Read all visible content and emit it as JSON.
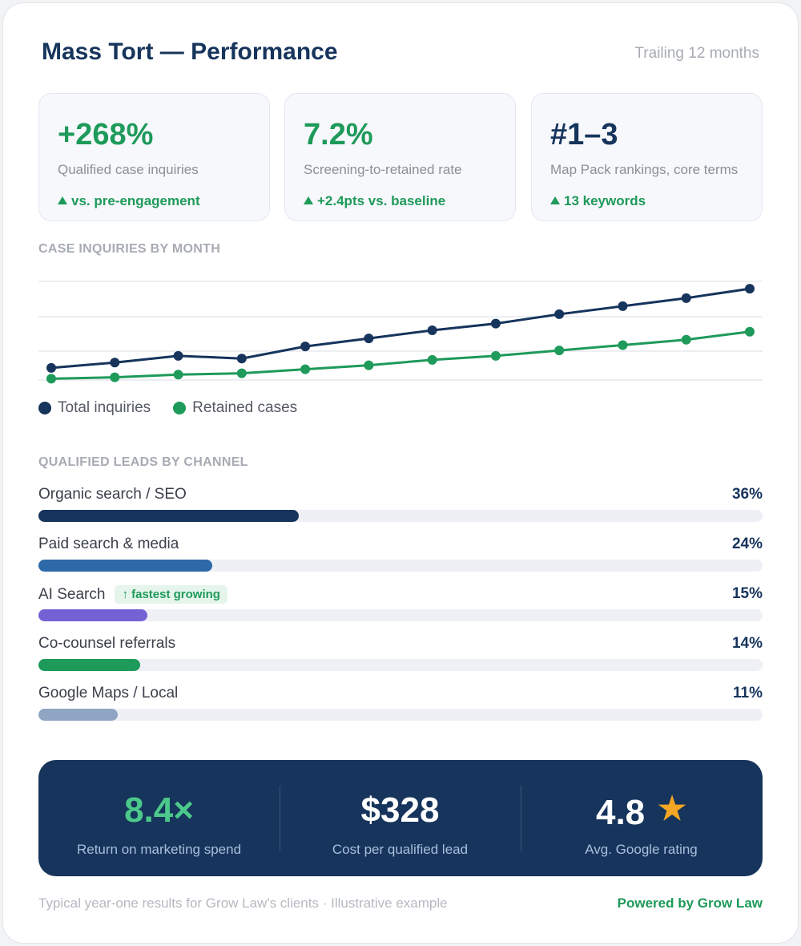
{
  "header": {
    "title": "Mass Tort — Performance",
    "subtitle": "Trailing 12 months"
  },
  "kpis": [
    {
      "value": "+268%",
      "label": "Qualified case inquiries",
      "delta": "vs. pre-engagement",
      "color": "#1e9a5a"
    },
    {
      "value": "7.2%",
      "label": "Screening-to-retained rate",
      "delta": "+2.4pts vs. baseline",
      "color": "#1e9a5a"
    },
    {
      "value": "#1–3",
      "label": "Map Pack rankings, core terms",
      "delta": "13 keywords",
      "color": "#16345c"
    }
  ],
  "sections": {
    "inquiries": "CASE INQUIRIES BY MONTH",
    "channels": "QUALIFIED LEADS BY CHANNEL"
  },
  "chart_data": {
    "type": "line",
    "title": "CASE INQUIRIES BY MONTH",
    "x": [
      1,
      2,
      3,
      4,
      5,
      6,
      7,
      8,
      9,
      10,
      11,
      12
    ],
    "series": [
      {
        "name": "Total inquiries",
        "color": "#16345c",
        "values": [
          18,
          26,
          36,
          32,
          50,
          62,
          74,
          84,
          98,
          110,
          122,
          136
        ]
      },
      {
        "name": "Retained cases",
        "color": "#1e9a5a",
        "values": [
          2,
          4,
          8,
          10,
          16,
          22,
          30,
          36,
          44,
          52,
          60,
          72
        ]
      }
    ],
    "ylim": [
      0,
      160
    ],
    "grid": true,
    "legend": "bottom-left"
  },
  "channels": [
    {
      "name": "Organic search / SEO",
      "pct_label": "36%",
      "value": 36,
      "color": "#16345c",
      "badge": ""
    },
    {
      "name": "Paid search & media",
      "pct_label": "24%",
      "value": 24,
      "color": "#2d69a8",
      "badge": ""
    },
    {
      "name": "AI Search",
      "pct_label": "15%",
      "value": 15,
      "color": "#7462d4",
      "badge": "↑ fastest growing"
    },
    {
      "name": "Co-counsel referrals",
      "pct_label": "14%",
      "value": 14,
      "color": "#1e9a5a",
      "badge": ""
    },
    {
      "name": "Google Maps / Local",
      "pct_label": "11%",
      "value": 11,
      "color": "#8fa5c4",
      "badge": ""
    }
  ],
  "summary": [
    {
      "value": "8.4×",
      "label": "Return on marketing spend",
      "color": "#4cc98a"
    },
    {
      "value": "$328",
      "label": "Cost per qualified lead",
      "color": "#ffffff"
    },
    {
      "value": "4.8",
      "label": "Avg. Google rating",
      "color": "#ffffff",
      "icon": "star-icon",
      "icon_color": "#f5a623"
    }
  ],
  "footer": {
    "note": "Typical year-one results for Grow Law's clients · Illustrative example",
    "brand": "Powered by Grow Law"
  }
}
